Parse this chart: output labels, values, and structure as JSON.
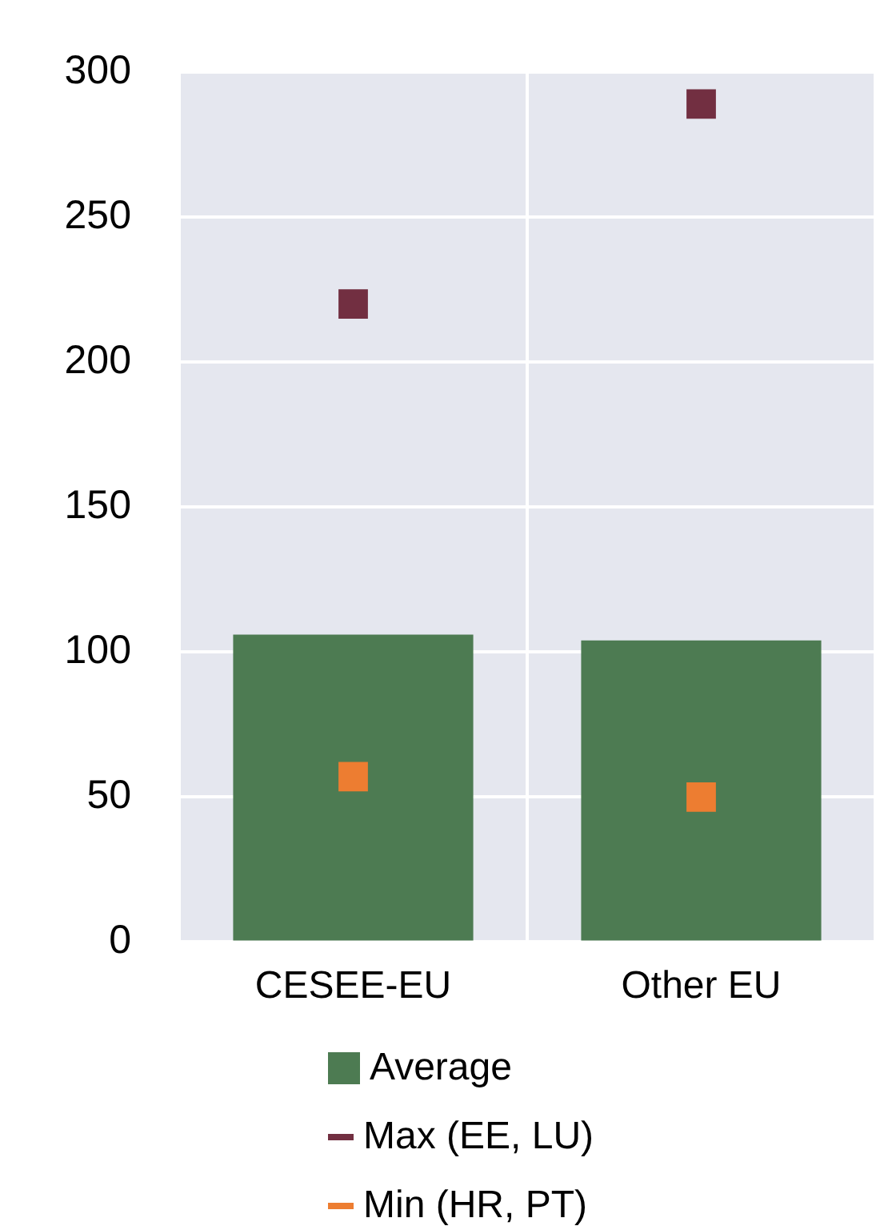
{
  "chart_data": {
    "type": "bar",
    "categories": [
      "CESEE-EU",
      "Other EU"
    ],
    "series": [
      {
        "name": "Average",
        "color": "#4d7b52",
        "values": [
          106,
          104
        ]
      },
      {
        "name": "Max (EE, LU)",
        "type": "scatter",
        "marker": "square",
        "color": "#722f41",
        "x": [
          "CESEE-EU",
          "Other EU"
        ],
        "values": [
          220,
          289
        ]
      },
      {
        "name": "Min (HR, PT)",
        "type": "scatter",
        "marker": "square",
        "color": "#ed7d31",
        "x": [
          "CESEE-EU",
          "Other EU"
        ],
        "values": [
          57,
          50
        ]
      }
    ],
    "ylim": [
      0,
      300
    ],
    "yticks": [
      0,
      50,
      100,
      150,
      200,
      250,
      300
    ],
    "grid": true,
    "legend": "bottom"
  }
}
